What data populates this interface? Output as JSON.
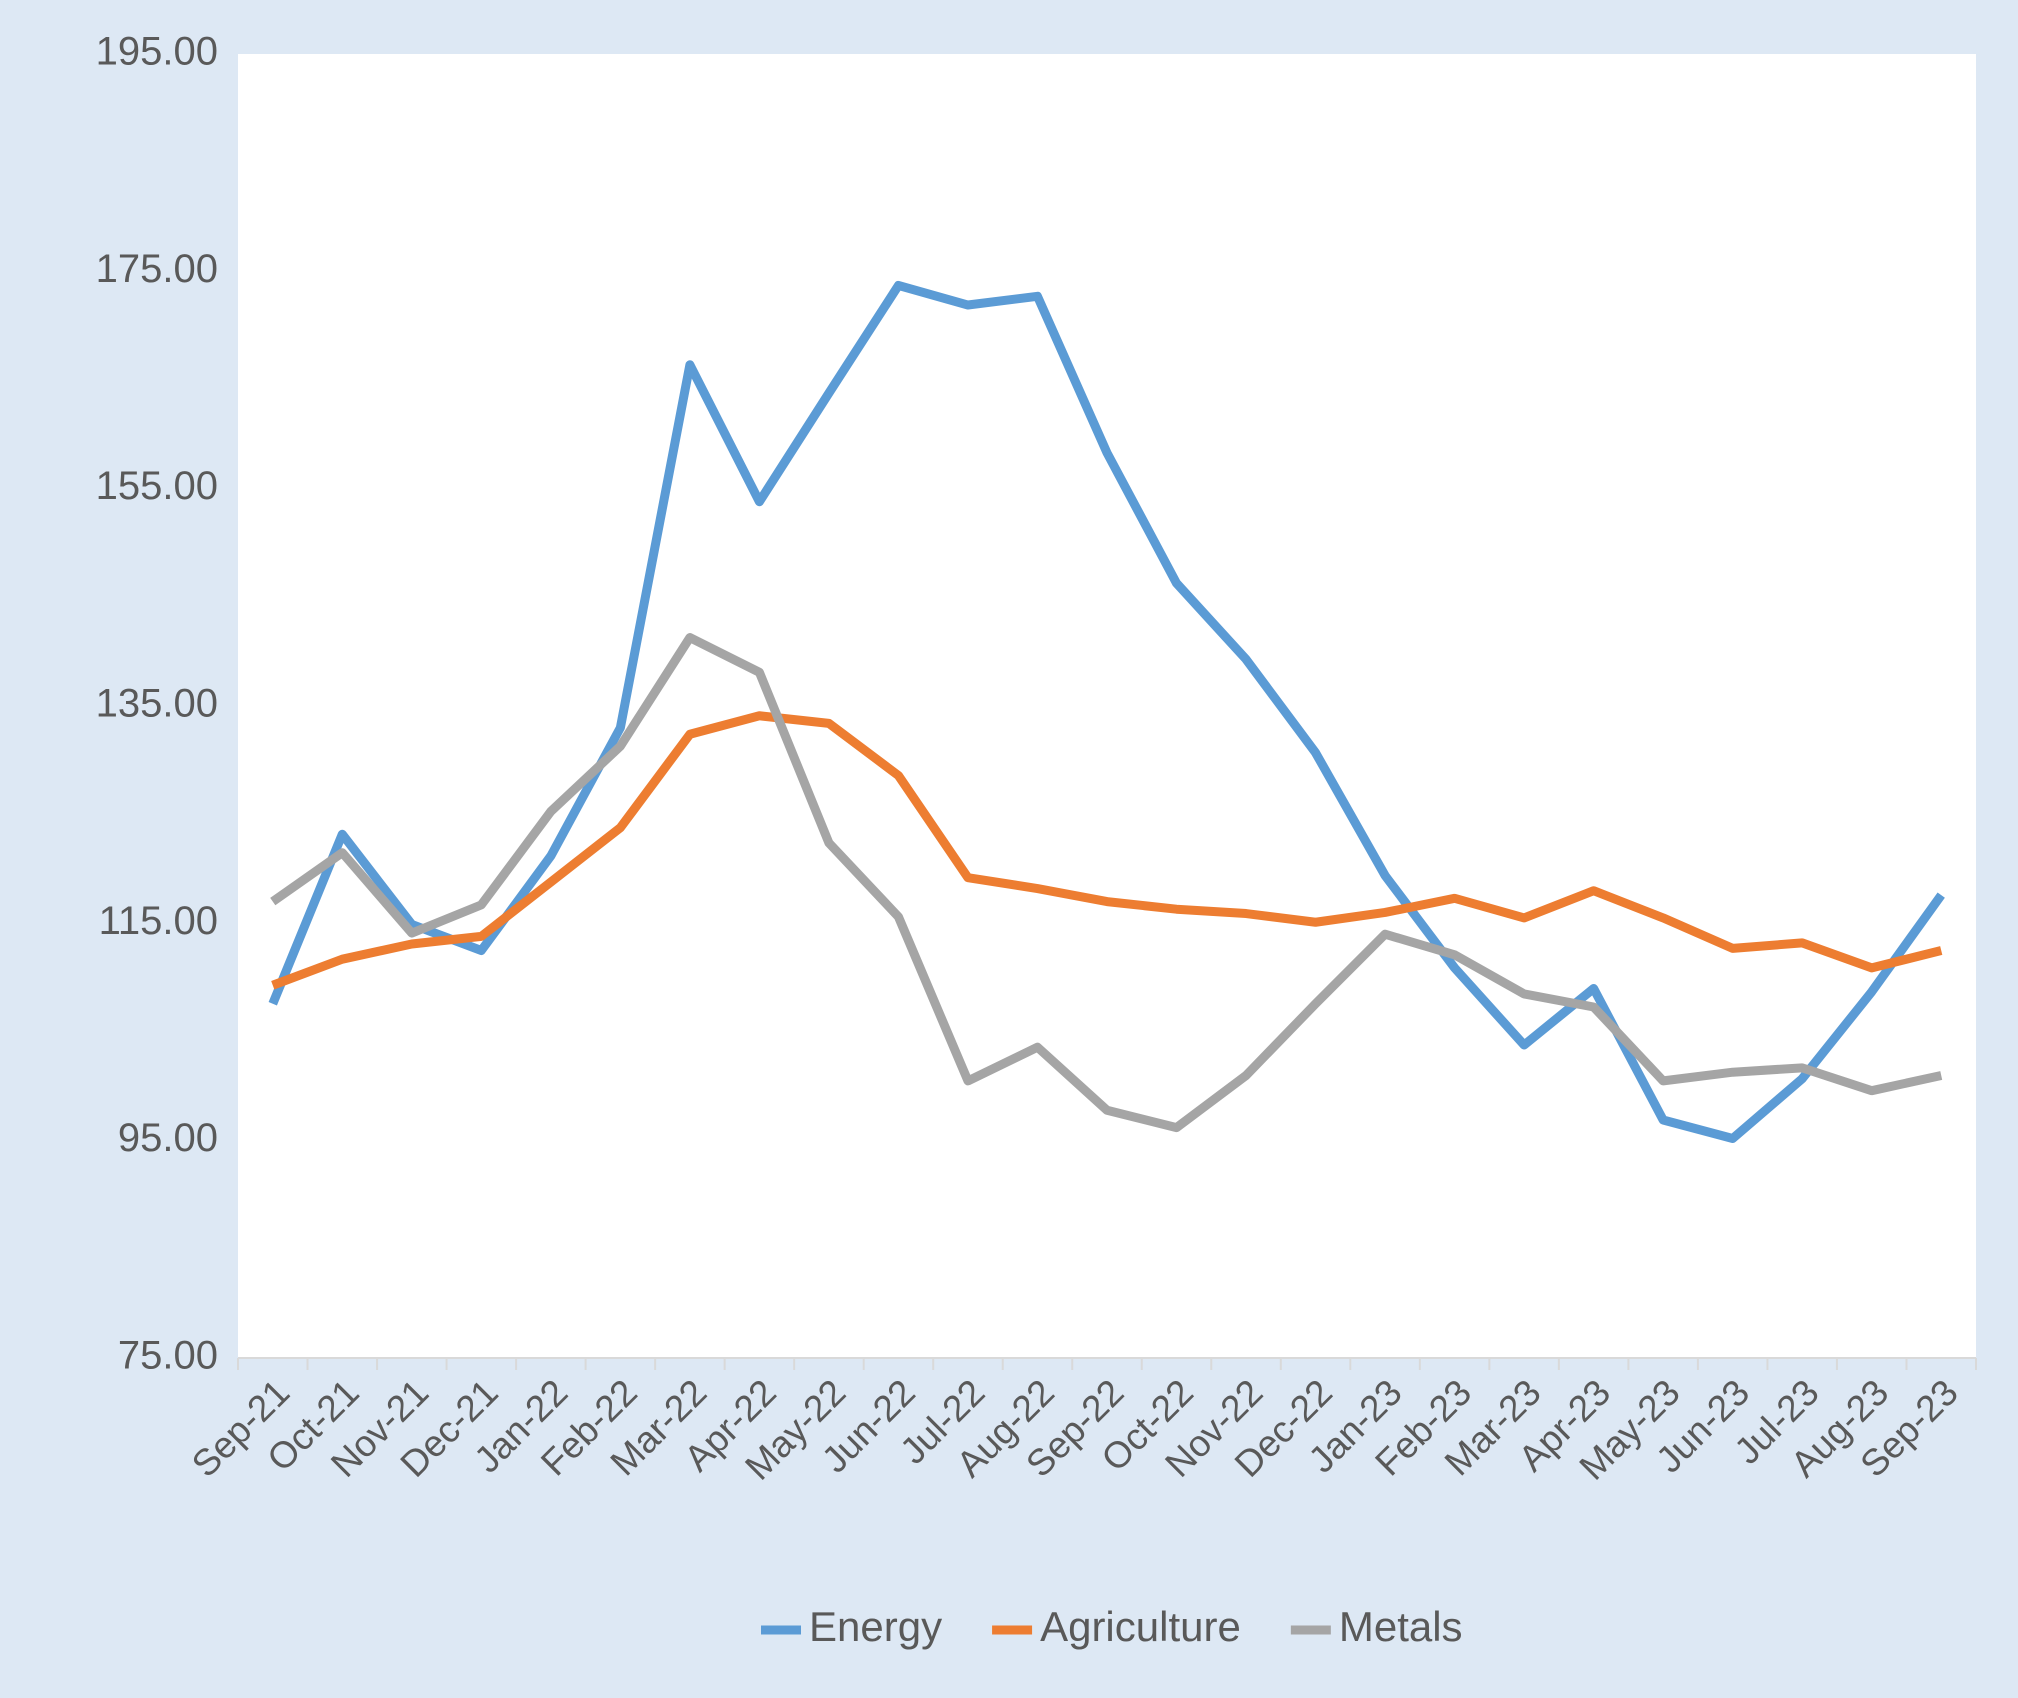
{
  "chart_data": {
    "type": "line",
    "categories": [
      "Sep-21",
      "Oct-21",
      "Nov-21",
      "Dec-21",
      "Jan-22",
      "Feb-22",
      "Mar-22",
      "Apr-22",
      "May-22",
      "Jun-22",
      "Jul-22",
      "Aug-22",
      "Sep-22",
      "Oct-22",
      "Nov-22",
      "Dec-22",
      "Jan-23",
      "Feb-23",
      "Mar-23",
      "Apr-23",
      "May-23",
      "Jun-23",
      "Jul-23",
      "Aug-23",
      "Sep-23"
    ],
    "series": [
      {
        "name": "Energy",
        "color": "#5b9bd5",
        "values": [
          107.6,
          123.2,
          114.9,
          112.5,
          121.2,
          133.0,
          166.4,
          153.8,
          163.8,
          173.7,
          171.9,
          172.7,
          158.3,
          146.3,
          139.3,
          130.7,
          119.4,
          110.9,
          103.8,
          109.0,
          96.9,
          95.2,
          100.7,
          108.7,
          117.6
        ]
      },
      {
        "name": "Agriculture",
        "color": "#ed7d31",
        "values": [
          109.3,
          111.7,
          113.1,
          113.8,
          118.8,
          123.8,
          132.4,
          134.1,
          133.4,
          128.6,
          119.2,
          118.2,
          117.0,
          116.3,
          115.9,
          115.1,
          116.0,
          117.3,
          115.5,
          118.0,
          115.5,
          112.7,
          113.2,
          110.9,
          112.5
        ]
      },
      {
        "name": "Metals",
        "color": "#a5a5a5",
        "values": [
          117.0,
          121.5,
          114.1,
          116.7,
          125.3,
          131.3,
          141.3,
          138.1,
          122.4,
          115.6,
          100.5,
          103.6,
          97.8,
          96.2,
          101.0,
          107.6,
          114.0,
          112.1,
          108.5,
          107.3,
          100.5,
          101.3,
          101.7,
          99.6,
          101.0
        ]
      }
    ],
    "ylim": [
      75,
      195
    ],
    "yticks": [
      {
        "value": 75,
        "label": "75.00"
      },
      {
        "value": 95,
        "label": "95.00"
      },
      {
        "value": 115,
        "label": "115.00"
      },
      {
        "value": 135,
        "label": "135.00"
      },
      {
        "value": 155,
        "label": "155.00"
      },
      {
        "value": 175,
        "label": "175.00"
      },
      {
        "value": 195,
        "label": "195.00"
      }
    ],
    "legend": "bottom"
  }
}
